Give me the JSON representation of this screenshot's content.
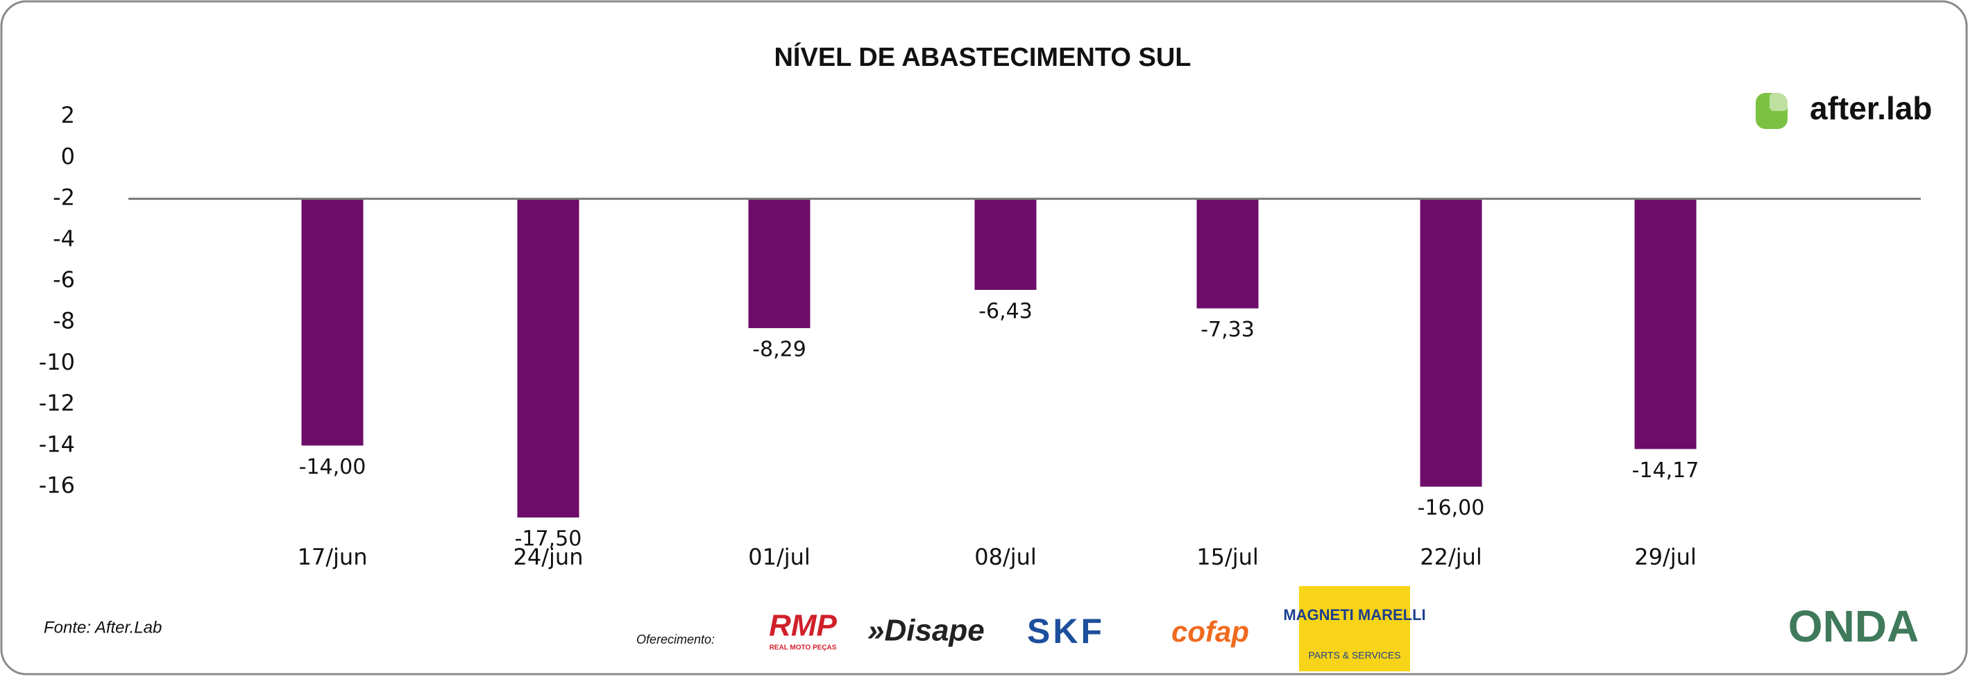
{
  "chart_data": {
    "type": "bar",
    "title": "NÍVEL DE ABASTECIMENTO SUL",
    "categories": [
      "17/jun",
      "24/jun",
      "01/jul",
      "08/jul",
      "15/jul",
      "22/jul",
      "29/jul"
    ],
    "values": [
      -14,
      -17.5,
      -8.29,
      -6.43,
      -7.33,
      -16,
      -14.17
    ],
    "value_labels": [
      "-14,00",
      "-17,50",
      "-8,29",
      "-6,43",
      "-7,33",
      "-16,00",
      "-14,17"
    ],
    "color": "#6e0d69",
    "baseline": -2,
    "ylim": [
      -18,
      2
    ],
    "yticks": [
      2,
      0,
      -2,
      -4,
      -6,
      -8,
      -10,
      -12,
      -14,
      -16
    ],
    "grid": false
  },
  "source": "Fonte: After.Lab",
  "sponsor_label": "Oferecimento:",
  "brand": "after.lab",
  "logos": {
    "rmp": "RMP",
    "rmp_sub": "REAL MOTO PEÇAS",
    "disape": "»Disape",
    "skf": "SKF",
    "cofap": "cofap",
    "magneti": "MAGNETI MARELLI",
    "magneti_sub": "PARTS & SERVICES",
    "onda": "ONDA"
  }
}
